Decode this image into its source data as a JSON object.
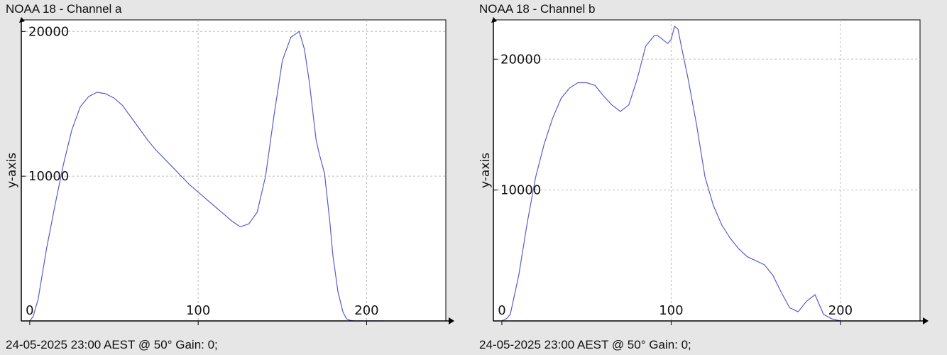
{
  "chart_data": [
    {
      "type": "line",
      "title": "NOAA 18 - Channel a",
      "footer": "24-05-2025 23:00 AEST @ 50° Gain: 0;",
      "ylabel": "y-axis",
      "xlabel": "",
      "xlim": [
        -5,
        247
      ],
      "ylim": [
        0,
        20800
      ],
      "x_ticks": [
        0,
        100,
        200
      ],
      "y_ticks": [
        10000,
        20000
      ],
      "grid": true,
      "line_color": "#5b5bcf",
      "series": [
        {
          "x": [
            0,
            2,
            5,
            10,
            15,
            20,
            25,
            30,
            35,
            40,
            45,
            50,
            55,
            60,
            65,
            70,
            75,
            80,
            85,
            90,
            95,
            100,
            105,
            110,
            115,
            120,
            125,
            130,
            135,
            140,
            145,
            150,
            155,
            160,
            163,
            166,
            168,
            170,
            172,
            175,
            178,
            180,
            183,
            186,
            188,
            190,
            192,
            195,
            198,
            200,
            205,
            210
          ],
          "y": [
            0,
            300,
            1500,
            5000,
            8000,
            10800,
            13200,
            14800,
            15500,
            15800,
            15700,
            15400,
            14900,
            14100,
            13300,
            12500,
            11800,
            11200,
            10600,
            10000,
            9400,
            8900,
            8400,
            7900,
            7400,
            6900,
            6500,
            6700,
            7500,
            10000,
            14200,
            18000,
            19600,
            20000,
            18800,
            16500,
            14500,
            12500,
            11500,
            10200,
            7000,
            4500,
            2000,
            600,
            150,
            50,
            0,
            0,
            0,
            0,
            0,
            0
          ]
        }
      ]
    },
    {
      "type": "line",
      "title": "NOAA 18 - Channel b",
      "footer": "24-05-2025 23:00 AEST @ 50° Gain: 0;",
      "ylabel": "y-axis",
      "xlabel": "",
      "xlim": [
        -5,
        247
      ],
      "ylim": [
        0,
        23000
      ],
      "x_ticks": [
        0,
        100,
        200
      ],
      "y_ticks": [
        10000,
        20000
      ],
      "grid": true,
      "line_color": "#5b5bcf",
      "series": [
        {
          "x": [
            0,
            3,
            5,
            10,
            15,
            20,
            25,
            30,
            35,
            40,
            45,
            50,
            55,
            60,
            65,
            70,
            75,
            80,
            85,
            90,
            92,
            95,
            98,
            100,
            102,
            104,
            106,
            110,
            115,
            120,
            125,
            130,
            135,
            140,
            145,
            150,
            155,
            160,
            165,
            170,
            175,
            180,
            185,
            190,
            195,
            200
          ],
          "y": [
            0,
            200,
            500,
            3500,
            7500,
            11000,
            13500,
            15500,
            17000,
            17800,
            18200,
            18200,
            18000,
            17200,
            16500,
            16000,
            16500,
            18500,
            21000,
            21800,
            21800,
            21500,
            21200,
            21500,
            22500,
            22300,
            21000,
            18500,
            15000,
            11000,
            8800,
            7300,
            6300,
            5500,
            4900,
            4600,
            4300,
            3500,
            2200,
            1000,
            700,
            1500,
            2000,
            500,
            150,
            0
          ]
        }
      ]
    }
  ]
}
